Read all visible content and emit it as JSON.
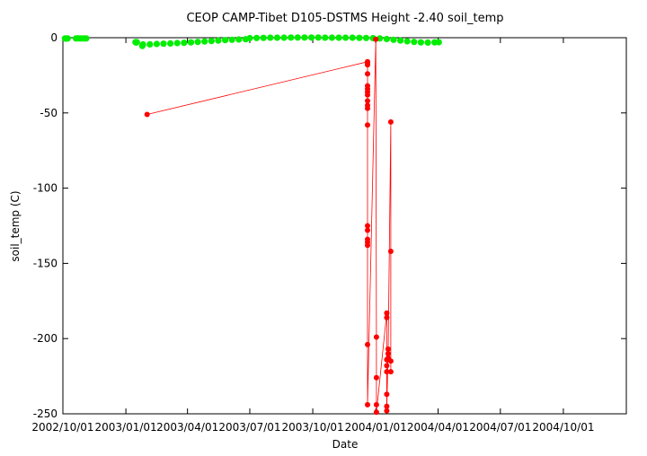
{
  "chart_data": {
    "type": "scatter",
    "title": "CEOP CAMP-Tibet D105-DSTMS Height -2.40 soil_temp",
    "xlabel": "Date",
    "ylabel": "soil_temp (C)",
    "xlim": [
      "2002-10-01",
      "2005-01-01"
    ],
    "ylim": [
      -250,
      0
    ],
    "x_ticks": [
      "2002/10/01",
      "2003/01/01",
      "2003/04/01",
      "2003/07/01",
      "2003/10/01",
      "2004/01/01",
      "2004/04/01",
      "2004/07/01",
      "2004/10/01"
    ],
    "y_ticks": [
      0,
      -50,
      -100,
      -150,
      -200,
      -250
    ],
    "grid": false,
    "legend": "none",
    "series": [
      {
        "color": "#00ee00",
        "style": "points",
        "points": [
          [
            "2002-10-04",
            -0.5
          ],
          [
            "2002-10-06",
            -0.6
          ],
          [
            "2002-10-08",
            -0.5
          ],
          [
            "2002-10-20",
            -0.5
          ],
          [
            "2002-10-23",
            -0.4
          ],
          [
            "2002-10-26",
            -0.5
          ],
          [
            "2002-10-29",
            -0.5
          ],
          [
            "2002-11-01",
            -0.5
          ],
          [
            "2002-11-04",
            -0.5
          ],
          [
            "2003-01-15",
            -3.0
          ],
          [
            "2003-01-16",
            -3.2
          ],
          [
            "2003-01-17",
            -3.0
          ],
          [
            "2003-01-25",
            -5.5
          ],
          [
            "2003-01-26",
            -4.5
          ],
          [
            "2003-02-05",
            -4.4
          ],
          [
            "2003-02-15",
            -4.2
          ],
          [
            "2003-02-25",
            -4.0
          ],
          [
            "2003-03-07",
            -3.8
          ],
          [
            "2003-03-17",
            -3.6
          ],
          [
            "2003-03-27",
            -3.4
          ],
          [
            "2003-04-06",
            -3.1
          ],
          [
            "2003-04-16",
            -2.8
          ],
          [
            "2003-04-26",
            -2.5
          ],
          [
            "2003-05-06",
            -2.2
          ],
          [
            "2003-05-16",
            -1.9
          ],
          [
            "2003-05-26",
            -1.6
          ],
          [
            "2003-06-05",
            -1.4
          ],
          [
            "2003-06-15",
            -1.2
          ],
          [
            "2003-06-25",
            -1.0
          ],
          [
            "2003-07-01",
            -0.3
          ],
          [
            "2003-07-11",
            -0.2
          ],
          [
            "2003-07-21",
            -0.1
          ],
          [
            "2003-07-31",
            0.0
          ],
          [
            "2003-08-10",
            0.0
          ],
          [
            "2003-08-20",
            0.0
          ],
          [
            "2003-08-30",
            0.1
          ],
          [
            "2003-09-09",
            0.1
          ],
          [
            "2003-09-19",
            0.1
          ],
          [
            "2003-09-29",
            0.1
          ],
          [
            "2003-10-09",
            0.1
          ],
          [
            "2003-10-19",
            0.0
          ],
          [
            "2003-10-29",
            0.0
          ],
          [
            "2003-11-08",
            0.0
          ],
          [
            "2003-11-18",
            0.0
          ],
          [
            "2003-11-28",
            0.0
          ],
          [
            "2003-12-08",
            -0.1
          ],
          [
            "2003-12-18",
            -0.2
          ],
          [
            "2003-12-28",
            -0.3
          ],
          [
            "2004-01-07",
            -0.5
          ],
          [
            "2004-01-17",
            -0.9
          ],
          [
            "2004-01-27",
            -1.4
          ],
          [
            "2004-02-06",
            -1.9
          ],
          [
            "2004-02-16",
            -2.4
          ],
          [
            "2004-02-26",
            -2.8
          ],
          [
            "2004-03-07",
            -3.1
          ],
          [
            "2004-03-17",
            -3.2
          ],
          [
            "2004-03-27",
            -3.1
          ],
          [
            "2004-04-02",
            -3.0
          ]
        ]
      },
      {
        "color": "#ff0000",
        "style": "linespoints",
        "points": [
          [
            "2003-02-01",
            -51
          ],
          [
            "2003-12-20",
            -16
          ],
          [
            "2003-12-20",
            -17
          ],
          [
            "2003-12-20",
            -18
          ],
          [
            "2003-12-20",
            -24
          ],
          [
            "2003-12-20",
            -32
          ],
          [
            "2003-12-20",
            -34
          ],
          [
            "2003-12-20",
            -36
          ],
          [
            "2003-12-20",
            -38
          ],
          [
            "2003-12-20",
            -42
          ],
          [
            "2003-12-20",
            -45
          ],
          [
            "2003-12-20",
            -47
          ],
          [
            "2003-12-20",
            -58
          ],
          [
            "2003-12-20",
            -125
          ],
          [
            "2003-12-20",
            -128
          ],
          [
            "2003-12-20",
            -134
          ],
          [
            "2003-12-20",
            -136
          ],
          [
            "2003-12-20",
            -138
          ],
          [
            "2003-12-20",
            -204
          ],
          [
            "2003-12-20",
            -244
          ],
          [
            "2004-01-01",
            -1
          ],
          [
            "2004-01-02",
            -199
          ],
          [
            "2004-01-02",
            -226
          ],
          [
            "2004-01-02",
            -244
          ],
          [
            "2004-01-02",
            -249
          ],
          [
            "2004-01-17",
            -183
          ],
          [
            "2004-01-17",
            -186
          ],
          [
            "2004-01-17",
            -214
          ],
          [
            "2004-01-17",
            -218
          ],
          [
            "2004-01-17",
            -222
          ],
          [
            "2004-01-17",
            -237
          ],
          [
            "2004-01-17",
            -245
          ],
          [
            "2004-01-17",
            -248
          ],
          [
            "2004-01-19",
            -207
          ],
          [
            "2004-01-19",
            -210
          ],
          [
            "2004-01-19",
            -213
          ],
          [
            "2004-01-23",
            -56
          ],
          [
            "2004-01-23",
            -142
          ],
          [
            "2004-01-23",
            -215
          ],
          [
            "2004-01-23",
            -222
          ]
        ]
      }
    ]
  }
}
